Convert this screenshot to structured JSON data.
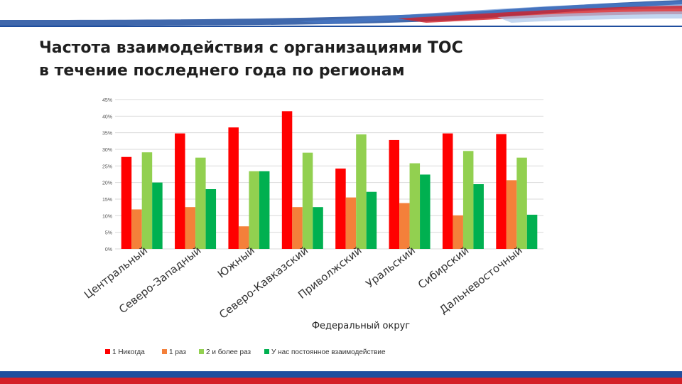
{
  "slide": {
    "title_line1": "Частота взаимодействия с организациями ТОС",
    "title_line2": "в течение последнего года по регионам"
  },
  "colors": {
    "never": "#ff0000",
    "once": "#f4803a",
    "twice_or_more": "#92d050",
    "permanent": "#00b050",
    "grid": "#d9d9d9",
    "banner_blue": "#1f4e9e",
    "banner_red": "#d42027"
  },
  "chart_data": {
    "type": "bar",
    "title": "",
    "xlabel": "Федеральный округ",
    "ylabel": "",
    "ylim": [
      0,
      45
    ],
    "y_ticks": [
      0,
      5,
      10,
      15,
      20,
      25,
      30,
      35,
      40,
      45
    ],
    "y_tick_labels": [
      "0%",
      "5%",
      "10%",
      "15%",
      "20%",
      "25%",
      "30%",
      "35%",
      "40%",
      "45%"
    ],
    "grid": true,
    "legend_position": "bottom-left",
    "categories": [
      "Центральный",
      "Северо-Западный",
      "Южный",
      "Северо-Кавказский",
      "Приволжский",
      "Уральский",
      "Сибирский",
      "Дальневосточный"
    ],
    "series": [
      {
        "name": "1 Никогда",
        "color_key": "never",
        "values": [
          27.7,
          34.8,
          36.6,
          41.5,
          24.2,
          32.8,
          34.8,
          34.6
        ]
      },
      {
        "name": "1 раз",
        "color_key": "once",
        "values": [
          11.9,
          12.6,
          6.8,
          12.6,
          15.5,
          13.8,
          10.1,
          20.7
        ]
      },
      {
        "name": "2 и более раз",
        "color_key": "twice_or_more",
        "values": [
          29.1,
          27.5,
          23.4,
          29.0,
          34.5,
          25.8,
          29.5,
          27.5
        ]
      },
      {
        "name": "У нас постоянное взаимодействие",
        "color_key": "permanent",
        "values": [
          20.0,
          18.0,
          23.4,
          12.6,
          17.2,
          22.4,
          19.5,
          10.3
        ]
      }
    ]
  }
}
